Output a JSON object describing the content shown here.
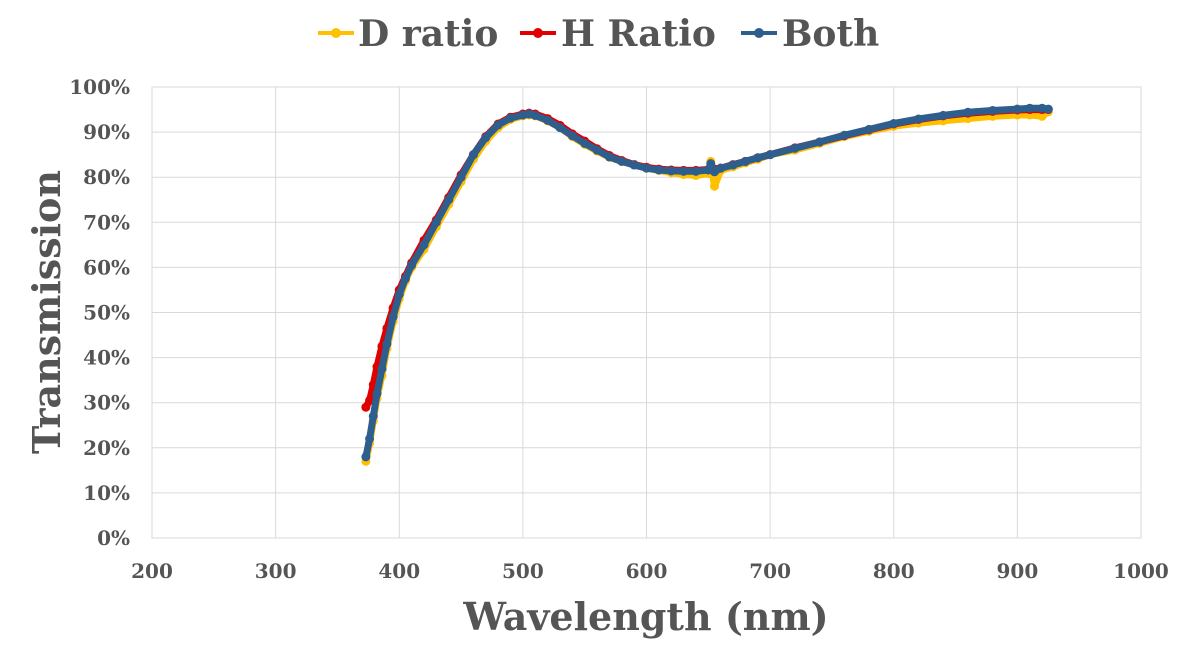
{
  "chart_data": {
    "type": "line",
    "title": "",
    "xlabel": "Wavelength (nm)",
    "ylabel": "Transmission",
    "xlim": [
      200,
      1000
    ],
    "ylim": [
      0,
      100
    ],
    "xticks": [
      200,
      300,
      400,
      500,
      600,
      700,
      800,
      900,
      1000
    ],
    "yticks": [
      0,
      10,
      20,
      30,
      40,
      50,
      60,
      70,
      80,
      90,
      100
    ],
    "x_tick_labels": [
      "200",
      "300",
      "400",
      "500",
      "600",
      "700",
      "800",
      "900",
      "1000"
    ],
    "y_tick_labels": [
      "0%",
      "10%",
      "20%",
      "30%",
      "40%",
      "50%",
      "60%",
      "70%",
      "80%",
      "90%",
      "100%"
    ],
    "grid": true,
    "legend_position": "top",
    "series": [
      {
        "name": "D ratio",
        "color": "#FFC000",
        "x": [
          373,
          376,
          379,
          382,
          386,
          390,
          395,
          400,
          405,
          410,
          420,
          430,
          440,
          450,
          460,
          470,
          480,
          490,
          500,
          505,
          510,
          520,
          530,
          540,
          550,
          560,
          570,
          580,
          590,
          600,
          610,
          620,
          630,
          640,
          650,
          652,
          655,
          660,
          670,
          680,
          690,
          700,
          720,
          740,
          760,
          780,
          800,
          820,
          840,
          860,
          880,
          900,
          910,
          920,
          925
        ],
        "y": [
          17,
          21,
          26,
          31,
          36,
          42,
          48,
          53,
          57,
          60,
          64,
          69,
          74,
          79,
          84,
          88,
          91,
          92.8,
          93.6,
          93.8,
          93.6,
          92.5,
          91,
          89,
          87.3,
          85.8,
          84.4,
          83.5,
          82.8,
          82,
          81.5,
          81,
          80.6,
          80.4,
          80.8,
          83.5,
          78,
          81.5,
          82.3,
          83.2,
          84,
          85,
          86,
          87.5,
          89,
          90.2,
          91.3,
          92,
          92.5,
          93,
          93.5,
          93.8,
          93.8,
          93.5,
          94.5
        ]
      },
      {
        "name": "H Ratio",
        "color": "#E00000",
        "x": [
          373,
          376,
          379,
          382,
          386,
          390,
          395,
          400,
          405,
          410,
          420,
          430,
          440,
          450,
          460,
          470,
          480,
          490,
          500,
          505,
          510,
          520,
          530,
          540,
          550,
          560,
          570,
          580,
          590,
          600,
          610,
          620,
          630,
          640,
          650,
          655,
          660,
          670,
          680,
          690,
          700,
          720,
          740,
          760,
          780,
          800,
          820,
          840,
          860,
          880,
          900,
          910,
          920,
          925
        ],
        "y": [
          29,
          30.5,
          34,
          38,
          42.5,
          46.5,
          51,
          55,
          58,
          61,
          66,
          70.5,
          75.5,
          80.5,
          85,
          89,
          91.8,
          93.3,
          94,
          94.2,
          94,
          93,
          91.5,
          89.6,
          88,
          86.3,
          84.8,
          83.7,
          82.8,
          82.2,
          81.8,
          81.6,
          81.5,
          81.5,
          81.7,
          81.8,
          82,
          82.8,
          83.5,
          84.3,
          85,
          86.5,
          87.8,
          89.2,
          90.5,
          91.8,
          92.8,
          93.6,
          94.2,
          94.6,
          94.9,
          95,
          95,
          95
        ]
      },
      {
        "name": "Both",
        "color": "#2E5E8E",
        "x": [
          373,
          376,
          379,
          382,
          386,
          390,
          395,
          400,
          405,
          410,
          420,
          430,
          440,
          450,
          460,
          470,
          480,
          490,
          500,
          505,
          510,
          520,
          530,
          540,
          550,
          560,
          570,
          580,
          590,
          600,
          610,
          620,
          630,
          640,
          650,
          652,
          655,
          660,
          670,
          680,
          690,
          700,
          720,
          740,
          760,
          780,
          800,
          820,
          840,
          860,
          880,
          900,
          910,
          920,
          925
        ],
        "y": [
          18,
          22,
          27,
          32,
          37.5,
          43,
          49,
          54,
          57.5,
          60.5,
          65,
          70,
          75,
          80,
          85,
          88.8,
          91.6,
          93.1,
          93.8,
          94,
          93.7,
          92.6,
          91,
          89.2,
          87.5,
          86,
          84.5,
          83.5,
          82.7,
          82,
          81.6,
          81.4,
          81.3,
          81.3,
          81.6,
          83,
          81.2,
          82,
          82.7,
          83.5,
          84.3,
          85,
          86.4,
          87.8,
          89.3,
          90.6,
          91.9,
          92.9,
          93.7,
          94.4,
          94.8,
          95.1,
          95.3,
          95.3,
          95.1
        ]
      }
    ]
  }
}
